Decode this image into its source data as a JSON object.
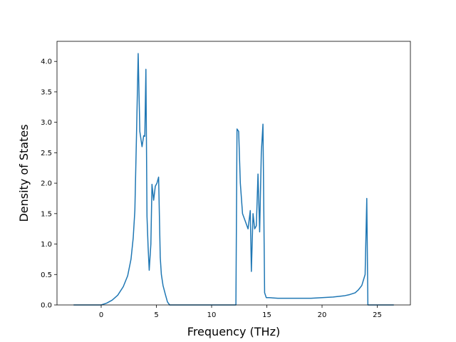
{
  "chart_data": {
    "type": "line",
    "title": "",
    "xlabel": "Frequency (THz)",
    "ylabel": "Density of States",
    "xlim": [
      -4.0,
      28.0
    ],
    "ylim": [
      0.0,
      4.33
    ],
    "grid": false,
    "legend": "none",
    "x_ticks": [
      0,
      5,
      10,
      15,
      20,
      25
    ],
    "x_tick_labels": [
      "0",
      "5",
      "10",
      "15",
      "20",
      "25"
    ],
    "y_ticks": [
      0.0,
      0.5,
      1.0,
      1.5,
      2.0,
      2.5,
      3.0,
      3.5,
      4.0
    ],
    "y_tick_labels": [
      "0.0",
      "0.5",
      "1.0",
      "1.5",
      "2.0",
      "2.5",
      "3.0",
      "3.5",
      "4.0"
    ],
    "colors": {
      "line": "#1f77b4",
      "axes": "#000000",
      "background": "#ffffff"
    },
    "series": [
      {
        "x": [
          -2.5,
          -1.0,
          0.0,
          0.5,
          1.0,
          1.5,
          2.0,
          2.4,
          2.7,
          2.9,
          3.05,
          3.2,
          3.35,
          3.5,
          3.7,
          3.85,
          3.95,
          4.05,
          4.15,
          4.25,
          4.35,
          4.5,
          4.6,
          4.75,
          4.9,
          5.05,
          5.2,
          5.35,
          5.45,
          5.6,
          5.8,
          6.0,
          6.2,
          6.4,
          7.0,
          12.2,
          12.3,
          12.45,
          12.6,
          12.8,
          13.0,
          13.3,
          13.5,
          13.6,
          13.75,
          13.9,
          14.05,
          14.2,
          14.35,
          14.5,
          14.65,
          14.8,
          14.95,
          15.0,
          15.2,
          16.0,
          17.0,
          18.0,
          19.0,
          20.0,
          21.0,
          21.5,
          22.0,
          22.5,
          23.0,
          23.3,
          23.6,
          23.9,
          24.05,
          24.15,
          24.3,
          26.5
        ],
        "y": [
          0.0,
          0.0,
          0.0,
          0.03,
          0.08,
          0.16,
          0.3,
          0.48,
          0.75,
          1.1,
          1.55,
          2.8,
          4.13,
          2.85,
          2.6,
          2.78,
          2.77,
          3.87,
          1.45,
          0.95,
          0.57,
          1.0,
          1.98,
          1.72,
          1.95,
          2.0,
          2.1,
          0.78,
          0.5,
          0.32,
          0.18,
          0.05,
          0.0,
          0.0,
          0.0,
          0.0,
          2.89,
          2.85,
          2.0,
          1.5,
          1.4,
          1.25,
          1.55,
          0.55,
          1.5,
          1.25,
          1.3,
          2.15,
          1.2,
          2.5,
          2.97,
          0.2,
          0.12,
          0.12,
          0.12,
          0.11,
          0.11,
          0.11,
          0.11,
          0.12,
          0.13,
          0.14,
          0.15,
          0.17,
          0.2,
          0.25,
          0.32,
          0.5,
          1.75,
          0.0,
          0.0,
          0.0
        ]
      }
    ]
  }
}
